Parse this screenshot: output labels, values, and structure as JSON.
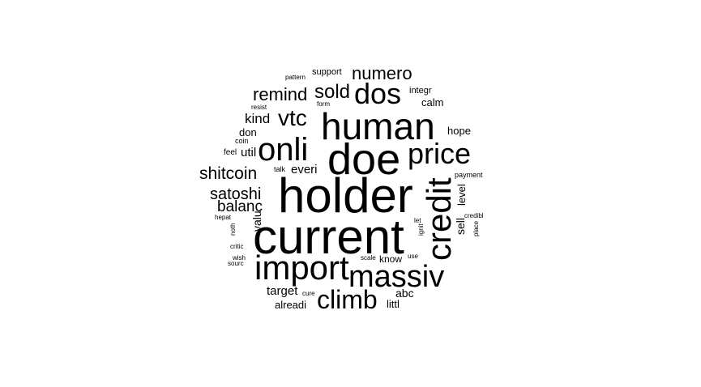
{
  "chart_data": {
    "type": "wordcloud",
    "color": "#000000",
    "words": [
      {
        "text": "holder",
        "weight": 10
      },
      {
        "text": "current",
        "weight": 10
      },
      {
        "text": "doe",
        "weight": 9
      },
      {
        "text": "import",
        "weight": 7
      },
      {
        "text": "human",
        "weight": 7
      },
      {
        "text": "credit",
        "weight": 7
      },
      {
        "text": "onli",
        "weight": 7
      },
      {
        "text": "massiv",
        "weight": 6
      },
      {
        "text": "price",
        "weight": 6
      },
      {
        "text": "dos",
        "weight": 5
      },
      {
        "text": "climb",
        "weight": 5
      },
      {
        "text": "vtc",
        "weight": 4
      },
      {
        "text": "sold",
        "weight": 4
      },
      {
        "text": "numero",
        "weight": 4
      },
      {
        "text": "remind",
        "weight": 4
      },
      {
        "text": "shitcoin",
        "weight": 4
      },
      {
        "text": "satoshi",
        "weight": 4
      },
      {
        "text": "balanc",
        "weight": 4
      },
      {
        "text": "kind",
        "weight": 3
      },
      {
        "text": "everi",
        "weight": 3
      },
      {
        "text": "util",
        "weight": 3
      },
      {
        "text": "target",
        "weight": 3
      },
      {
        "text": "valu",
        "weight": 3
      },
      {
        "text": "sell",
        "weight": 3
      },
      {
        "text": "level",
        "weight": 3
      },
      {
        "text": "abc",
        "weight": 2
      },
      {
        "text": "hope",
        "weight": 2
      },
      {
        "text": "calm",
        "weight": 2
      },
      {
        "text": "don",
        "weight": 2
      },
      {
        "text": "alreadi",
        "weight": 2
      },
      {
        "text": "littl",
        "weight": 2
      },
      {
        "text": "know",
        "weight": 2
      },
      {
        "text": "integr",
        "weight": 1
      },
      {
        "text": "support",
        "weight": 1
      },
      {
        "text": "feel",
        "weight": 1
      },
      {
        "text": "coin",
        "weight": 1
      },
      {
        "text": "talk",
        "weight": 1
      },
      {
        "text": "payment",
        "weight": 1
      },
      {
        "text": "pattern",
        "weight": 1
      },
      {
        "text": "resist",
        "weight": 1
      },
      {
        "text": "form",
        "weight": 1
      },
      {
        "text": "hepat",
        "weight": 1
      },
      {
        "text": "noth",
        "weight": 1
      },
      {
        "text": "critic",
        "weight": 1
      },
      {
        "text": "wish",
        "weight": 1
      },
      {
        "text": "sourc",
        "weight": 1
      },
      {
        "text": "scale",
        "weight": 1
      },
      {
        "text": "use",
        "weight": 1
      },
      {
        "text": "let",
        "weight": 1
      },
      {
        "text": "ignit",
        "weight": 1
      },
      {
        "text": "credibl",
        "weight": 1
      },
      {
        "text": "place",
        "weight": 1
      },
      {
        "text": "cure",
        "weight": 1
      }
    ]
  }
}
